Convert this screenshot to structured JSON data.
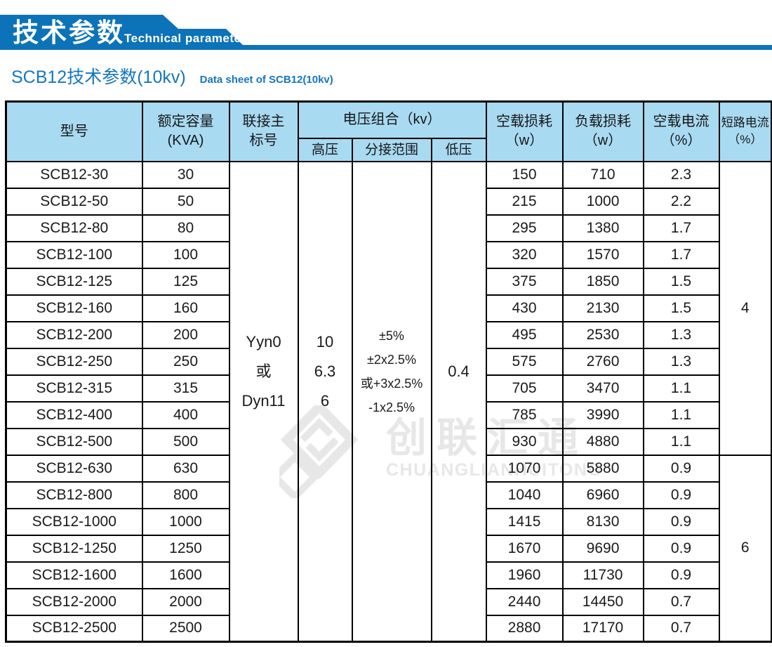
{
  "banner": {
    "title_cn": "技术参数",
    "title_en": "Technical parameter"
  },
  "subtitle": {
    "cn": "SCB12技术参数(10kv)",
    "en": "Data sheet of SCB12(10kv)"
  },
  "colors": {
    "banner_blue": "#0d73b8",
    "header_fill": "#a8daf2",
    "title_blue": "#1577be",
    "border_black": "#000000",
    "watermark_gray": "#e7e7e7"
  },
  "watermark": {
    "cn": "创联汇通",
    "en": "CHUANGLIANHUITONG",
    "logo": "interlocked-diamond-logo"
  },
  "table": {
    "headers": {
      "model": "型号",
      "capacity_l1": "额定容量",
      "capacity_l2": "(KVA)",
      "vector_l1": "联接主",
      "vector_l2": "标号",
      "voltage_group": "电压组合（kv）",
      "hv": "高压",
      "tap": "分接范围",
      "lv": "低压",
      "no_load_loss_l1": "空载损耗",
      "no_load_loss_l2": "（w）",
      "load_loss_l1": "负载损耗",
      "load_loss_l2": "（w）",
      "no_load_current_l1": "空载电流",
      "no_load_current_l2": "（%）",
      "short_circuit_l1": "短路电流",
      "short_circuit_l2": "（%）"
    },
    "merged": {
      "vector_lines": [
        "Yyn0",
        "或",
        "Dyn11"
      ],
      "hv_lines": [
        "10",
        "6.3",
        "6"
      ],
      "tap_lines": [
        "±5%",
        "±2x2.5%",
        "或+3x2.5%",
        "-1x2.5%"
      ],
      "lv": "0.4",
      "short_circuit_group1": "4",
      "short_circuit_group1_rows": 11,
      "short_circuit_group2": "6",
      "short_circuit_group2_rows": 7
    },
    "rows": [
      {
        "model": "SCB12-30",
        "kva": "30",
        "no_load_loss": "150",
        "load_loss": "710",
        "no_load_current": "2.3"
      },
      {
        "model": "SCB12-50",
        "kva": "50",
        "no_load_loss": "215",
        "load_loss": "1000",
        "no_load_current": "2.2"
      },
      {
        "model": "SCB12-80",
        "kva": "80",
        "no_load_loss": "295",
        "load_loss": "1380",
        "no_load_current": "1.7"
      },
      {
        "model": "SCB12-100",
        "kva": "100",
        "no_load_loss": "320",
        "load_loss": "1570",
        "no_load_current": "1.7"
      },
      {
        "model": "SCB12-125",
        "kva": "125",
        "no_load_loss": "375",
        "load_loss": "1850",
        "no_load_current": "1.5"
      },
      {
        "model": "SCB12-160",
        "kva": "160",
        "no_load_loss": "430",
        "load_loss": "2130",
        "no_load_current": "1.5"
      },
      {
        "model": "SCB12-200",
        "kva": "200",
        "no_load_loss": "495",
        "load_loss": "2530",
        "no_load_current": "1.3"
      },
      {
        "model": "SCB12-250",
        "kva": "250",
        "no_load_loss": "575",
        "load_loss": "2760",
        "no_load_current": "1.3"
      },
      {
        "model": "SCB12-315",
        "kva": "315",
        "no_load_loss": "705",
        "load_loss": "3470",
        "no_load_current": "1.1"
      },
      {
        "model": "SCB12-400",
        "kva": "400",
        "no_load_loss": "785",
        "load_loss": "3990",
        "no_load_current": "1.1"
      },
      {
        "model": "SCB12-500",
        "kva": "500",
        "no_load_loss": "930",
        "load_loss": "4880",
        "no_load_current": "1.1"
      },
      {
        "model": "SCB12-630",
        "kva": "630",
        "no_load_loss": "1070",
        "load_loss": "5880",
        "no_load_current": "0.9"
      },
      {
        "model": "SCB12-800",
        "kva": "800",
        "no_load_loss": "1040",
        "load_loss": "6960",
        "no_load_current": "0.9"
      },
      {
        "model": "SCB12-1000",
        "kva": "1000",
        "no_load_loss": "1415",
        "load_loss": "8130",
        "no_load_current": "0.9"
      },
      {
        "model": "SCB12-1250",
        "kva": "1250",
        "no_load_loss": "1670",
        "load_loss": "9690",
        "no_load_current": "0.9"
      },
      {
        "model": "SCB12-1600",
        "kva": "1600",
        "no_load_loss": "1960",
        "load_loss": "11730",
        "no_load_current": "0.9"
      },
      {
        "model": "SCB12-2000",
        "kva": "2000",
        "no_load_loss": "2440",
        "load_loss": "14450",
        "no_load_current": "0.7"
      },
      {
        "model": "SCB12-2500",
        "kva": "2500",
        "no_load_loss": "2880",
        "load_loss": "17170",
        "no_load_current": "0.7"
      }
    ]
  }
}
